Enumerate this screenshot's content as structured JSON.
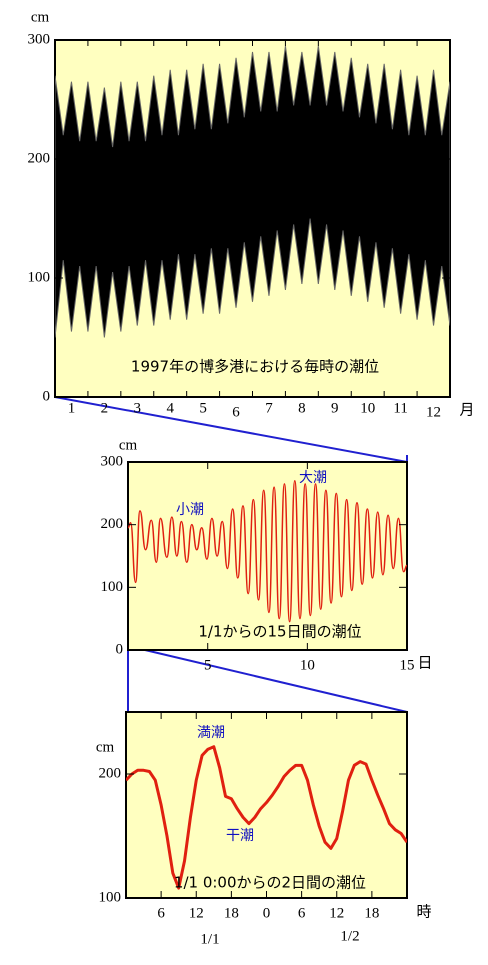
{
  "chart_data": [
    {
      "type": "band",
      "title": "1997年の博多港における毎時の潮位",
      "y_unit": "cm",
      "x_unit": "月",
      "categories": [
        "1",
        "2",
        "3",
        "4",
        "5",
        "6",
        "7",
        "8",
        "9",
        "10",
        "11",
        "12"
      ],
      "x": [
        0,
        0.25,
        0.5,
        0.75,
        1,
        1.25,
        1.5,
        1.75,
        2,
        2.25,
        2.5,
        2.75,
        3,
        3.25,
        3.5,
        3.75,
        4,
        4.25,
        4.5,
        4.75,
        5,
        5.25,
        5.5,
        5.75,
        6,
        6.25,
        6.5,
        6.75,
        7,
        7.25,
        7.5,
        7.75,
        8,
        8.25,
        8.5,
        8.75,
        9,
        9.25,
        9.5,
        9.75,
        10,
        10.25,
        10.5,
        10.75,
        11,
        11.25,
        11.5,
        11.75,
        12
      ],
      "high": [
        270,
        220,
        265,
        215,
        265,
        215,
        260,
        210,
        265,
        215,
        265,
        215,
        270,
        220,
        275,
        220,
        275,
        225,
        280,
        225,
        280,
        230,
        285,
        235,
        290,
        240,
        290,
        240,
        295,
        245,
        290,
        245,
        295,
        245,
        290,
        240,
        285,
        235,
        280,
        230,
        280,
        225,
        275,
        220,
        270,
        220,
        275,
        220,
        265
      ],
      "low": [
        50,
        115,
        55,
        110,
        55,
        110,
        50,
        105,
        55,
        110,
        60,
        115,
        60,
        115,
        65,
        120,
        65,
        120,
        70,
        125,
        70,
        125,
        75,
        130,
        80,
        135,
        85,
        140,
        90,
        145,
        95,
        150,
        95,
        145,
        90,
        140,
        85,
        135,
        80,
        130,
        75,
        125,
        70,
        120,
        65,
        115,
        60,
        110,
        60
      ],
      "xlim": [
        0,
        12
      ],
      "ylim": [
        0,
        300
      ],
      "yticks": [
        0,
        100,
        200,
        300
      ],
      "color": "#000000"
    },
    {
      "type": "line",
      "title": "1/1からの15日間の潮位",
      "y_unit": "cm",
      "x_unit": "日",
      "annotations": [
        "小潮",
        "大潮"
      ],
      "x": [
        1.0,
        1.13,
        1.38,
        1.6,
        1.88,
        2.17,
        2.42,
        2.63,
        2.95,
        3.2,
        3.45,
        3.68,
        3.95,
        4.2,
        4.45,
        4.7,
        4.96,
        5.21,
        5.47,
        5.73,
        5.99,
        6.25,
        6.51,
        6.77,
        7.03,
        7.29,
        7.55,
        7.81,
        8.07,
        8.33,
        8.59,
        8.85,
        9.11,
        9.37,
        9.63,
        9.89,
        10.15,
        10.41,
        10.67,
        10.93,
        11.19,
        11.45,
        11.71,
        11.97,
        12.23,
        12.49,
        12.75,
        13.01,
        13.27,
        13.53,
        13.79,
        14.05,
        14.31,
        14.57,
        14.83,
        15.0
      ],
      "values": [
        195,
        203,
        108,
        222,
        160,
        207,
        140,
        210,
        148,
        212,
        150,
        205,
        140,
        200,
        160,
        195,
        145,
        210,
        150,
        205,
        130,
        225,
        115,
        230,
        90,
        240,
        80,
        255,
        60,
        260,
        50,
        265,
        45,
        270,
        50,
        265,
        55,
        265,
        65,
        255,
        75,
        250,
        85,
        240,
        95,
        235,
        105,
        225,
        115,
        220,
        120,
        215,
        130,
        210,
        125,
        135
      ],
      "xlim": [
        1,
        15
      ],
      "xticks": [
        5,
        10,
        15
      ],
      "ylim": [
        0,
        300
      ],
      "yticks": [
        0,
        100,
        200,
        300
      ],
      "color": "#e02010"
    },
    {
      "type": "line",
      "title": "1/1 0:00からの2日間の潮位",
      "y_unit": "cm",
      "x_unit": "時",
      "annotations": [
        "満潮",
        "干潮"
      ],
      "date_labels": [
        "1/1",
        "1/2"
      ],
      "x": [
        0,
        1,
        2,
        3,
        4,
        5,
        6,
        7,
        8,
        9,
        10,
        11,
        12,
        13,
        14,
        15,
        16,
        17,
        18,
        19,
        20,
        21,
        22,
        23,
        24,
        25,
        26,
        27,
        28,
        29,
        30,
        31,
        32,
        33,
        34,
        35,
        36,
        37,
        38,
        39,
        40,
        41,
        42,
        43,
        44,
        45,
        46,
        47,
        48
      ],
      "values": [
        195,
        200,
        203,
        203,
        202,
        195,
        175,
        150,
        120,
        108,
        130,
        165,
        195,
        215,
        220,
        222,
        205,
        182,
        180,
        172,
        165,
        160,
        165,
        172,
        177,
        183,
        190,
        198,
        203,
        207,
        207,
        195,
        175,
        158,
        145,
        140,
        148,
        170,
        195,
        207,
        210,
        208,
        195,
        183,
        172,
        160,
        155,
        152,
        145
      ],
      "xlim": [
        0,
        48
      ],
      "xticks": [
        6,
        12,
        18,
        {
          "value": 24,
          "label": "0"
        },
        {
          "value": 30,
          "label": "6"
        },
        {
          "value": 36,
          "label": "12"
        },
        {
          "value": 42,
          "label": "18"
        }
      ],
      "ylim": [
        100,
        250
      ],
      "yticks": [
        100,
        200
      ],
      "color": "#e02010"
    }
  ]
}
